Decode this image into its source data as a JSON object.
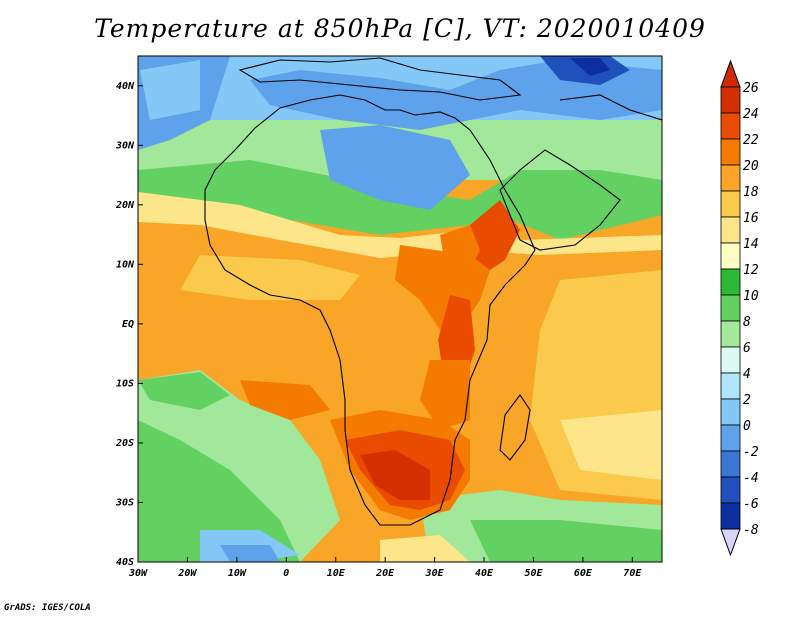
{
  "title": "Temperature at 850hPa [C], VT: 2020010409",
  "credit": "GrADS: IGES/COLA",
  "map": {
    "lon_range": [
      -30,
      76
    ],
    "lat_range": [
      -40,
      45
    ],
    "lon_ticks": [
      "30W",
      "20W",
      "10W",
      "0",
      "10E",
      "20E",
      "30E",
      "40E",
      "50E",
      "60E",
      "70E"
    ],
    "lat_ticks": [
      "40S",
      "30S",
      "20S",
      "10S",
      "EQ",
      "10N",
      "20N",
      "30N",
      "40N"
    ]
  },
  "colorbar": {
    "labels": [
      "26",
      "24",
      "22",
      "20",
      "18",
      "16",
      "14",
      "12",
      "10",
      "8",
      "6",
      "4",
      "2",
      "0",
      "-2",
      "-4",
      "-6",
      "-8"
    ],
    "colors": [
      "#d42f00",
      "#e94c00",
      "#f47b00",
      "#f9a528",
      "#fbc94c",
      "#fde58a",
      "#fefdc4",
      "#2eb934",
      "#63d062",
      "#a2e89a",
      "#dbfbf2",
      "#b0e6fb",
      "#84c8f7",
      "#5da2ea",
      "#3a76d3",
      "#2050bb",
      "#0d2ea0",
      "#171a70"
    ],
    "top_arrow_color": "#cf2a00",
    "bottom_arrow_color": "#d8d4fb"
  }
}
